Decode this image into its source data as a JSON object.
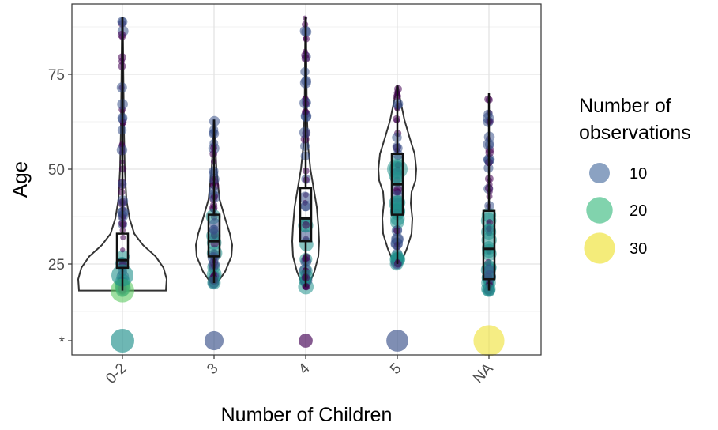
{
  "chart_data": {
    "type": "violin",
    "xlabel": "Number of Children",
    "ylabel": "Age",
    "categories": [
      "0-2",
      "3",
      "4",
      "5",
      "NA"
    ],
    "yticks": [
      25,
      50,
      75
    ],
    "ylim": [
      0,
      92
    ],
    "grid": true,
    "missing_row_label": "*",
    "violins": [
      {
        "category": "0-2",
        "min": 18,
        "max": 90
      },
      {
        "category": "3",
        "min": 20,
        "max": 63
      },
      {
        "category": "4",
        "min": 19,
        "max": 90
      },
      {
        "category": "5",
        "min": 25,
        "max": 72
      },
      {
        "category": "NA",
        "min": 18,
        "max": 70
      }
    ],
    "boxes": [
      {
        "category": "0-2",
        "q1": 24,
        "median": 26,
        "q3": 33,
        "whisker_low": 18,
        "whisker_high": 90
      },
      {
        "category": "3",
        "q1": 27,
        "median": 31,
        "q3": 38,
        "whisker_low": 20,
        "whisker_high": 63
      },
      {
        "category": "4",
        "q1": 31,
        "median": 37,
        "q3": 45,
        "whisker_low": 19,
        "whisker_high": 90
      },
      {
        "category": "5",
        "q1": 38,
        "median": 46,
        "q3": 54,
        "whisker_low": 25,
        "whisker_high": 72
      },
      {
        "category": "NA",
        "q1": 21,
        "median": 29,
        "q3": 39,
        "whisker_low": 18,
        "whisker_high": 70
      }
    ],
    "missing_age_counts": [
      {
        "category": "0-2",
        "n": 15
      },
      {
        "category": "3",
        "n": 8
      },
      {
        "category": "4",
        "n": 3
      },
      {
        "category": "5",
        "n": 12
      },
      {
        "category": "NA",
        "n": 30
      }
    ],
    "legend": {
      "title": "Number of\nobservations",
      "position": "right",
      "entries": [
        {
          "label": "10",
          "n": 10,
          "color": "#5a7aa8"
        },
        {
          "label": "20",
          "n": 20,
          "color": "#4cc08a"
        },
        {
          "label": "30",
          "n": 30,
          "color": "#f0e442"
        }
      ]
    },
    "point_colors": [
      "#440154",
      "#3b528b",
      "#21918c",
      "#5ec962",
      "#fde725"
    ]
  }
}
